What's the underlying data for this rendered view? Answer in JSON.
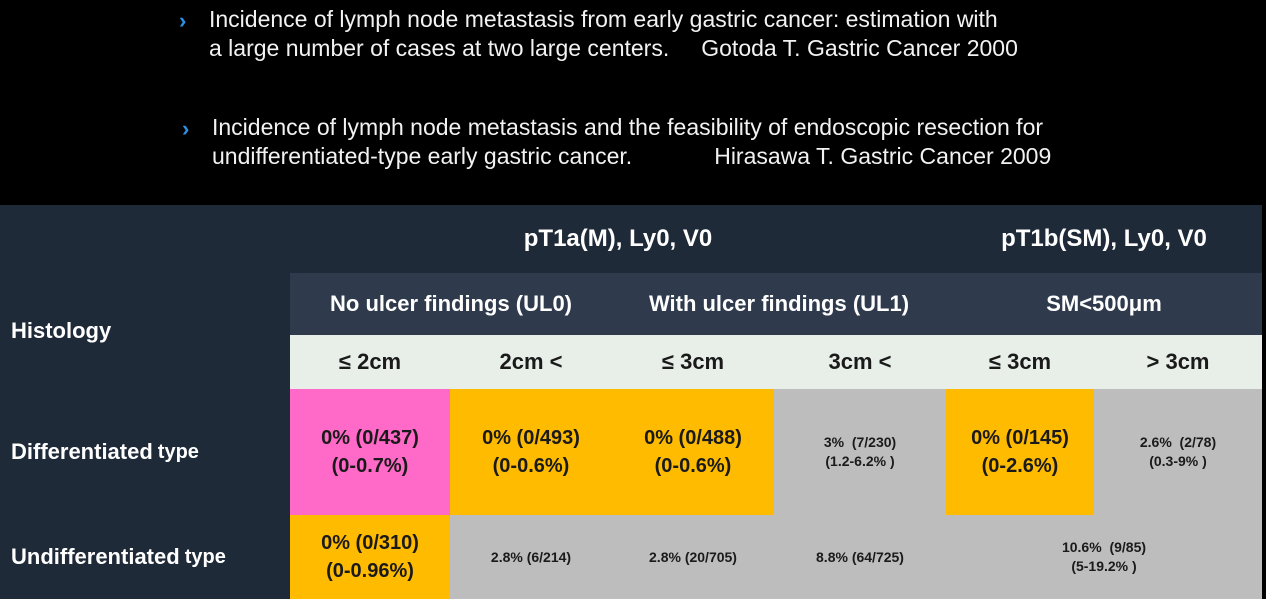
{
  "references": [
    {
      "bullet": "›",
      "line1": "Incidence of lymph node metastasis from early gastric cancer: estimation with",
      "line2": "a large number of cases at two large centers.",
      "citation": "Gotoda T. Gastric Cancer 2000"
    },
    {
      "bullet": "›",
      "line1": "Incidence of lymph node metastasis and the feasibility of endoscopic resection for",
      "line2": "undifferentiated-type early gastric cancer.",
      "citation": "Hirasawa T. Gastric Cancer 2009"
    }
  ],
  "table": {
    "histology_label": "Histology",
    "group_headers": {
      "pt1a": "pT1a(M), Ly0, V0",
      "pt1b": "pT1b(SM), Ly0, V0"
    },
    "sub_headers": {
      "ul0": "No ulcer findings (UL0)",
      "ul1": "With ulcer findings (UL1)",
      "sm": "SM<500μm"
    },
    "size_headers": [
      "≤ 2cm",
      "2cm <",
      "≤ 3cm",
      "3cm <",
      "≤ 3cm",
      "> 3cm"
    ],
    "rows": {
      "differentiated": {
        "label_main": "Differentiated",
        "label_suffix": "type",
        "cells": [
          {
            "line1": "0% (0/437)",
            "line2": "(0-0.7%)"
          },
          {
            "line1": "0% (0/493)",
            "line2": "(0-0.6%)"
          },
          {
            "line1": "0% (0/488)",
            "line2": "(0-0.6%)"
          },
          {
            "line1": "3%  (7/230)",
            "line2": "(1.2-6.2% )"
          },
          {
            "line1": "0% (0/145)",
            "line2": "(0-2.6%)"
          },
          {
            "line1": "2.6%  (2/78)",
            "line2": "(0.3-9% )"
          }
        ]
      },
      "undifferentiated": {
        "label_main": "Undifferentiated",
        "label_suffix": "type",
        "cells": [
          {
            "line1": "0% (0/310)",
            "line2": "(0-0.96%)"
          },
          {
            "line1": "2.8% (6/214)",
            "line2": ""
          },
          {
            "line1": "2.8% (20/705)",
            "line2": ""
          },
          {
            "line1": "8.8% (64/725)",
            "line2": ""
          },
          {
            "line1": "10.6%  (9/85)",
            "line2": "(5-19.2% )"
          }
        ]
      }
    },
    "colors": {
      "pink": "#ff6ac8",
      "orange": "#ffbb00",
      "gray": "#bdbdbd",
      "dark_bg": "#1f2a38",
      "mid_header": "#2f3b4d",
      "size_header": "#e8efe9",
      "bullet": "#2d8fe6"
    }
  }
}
